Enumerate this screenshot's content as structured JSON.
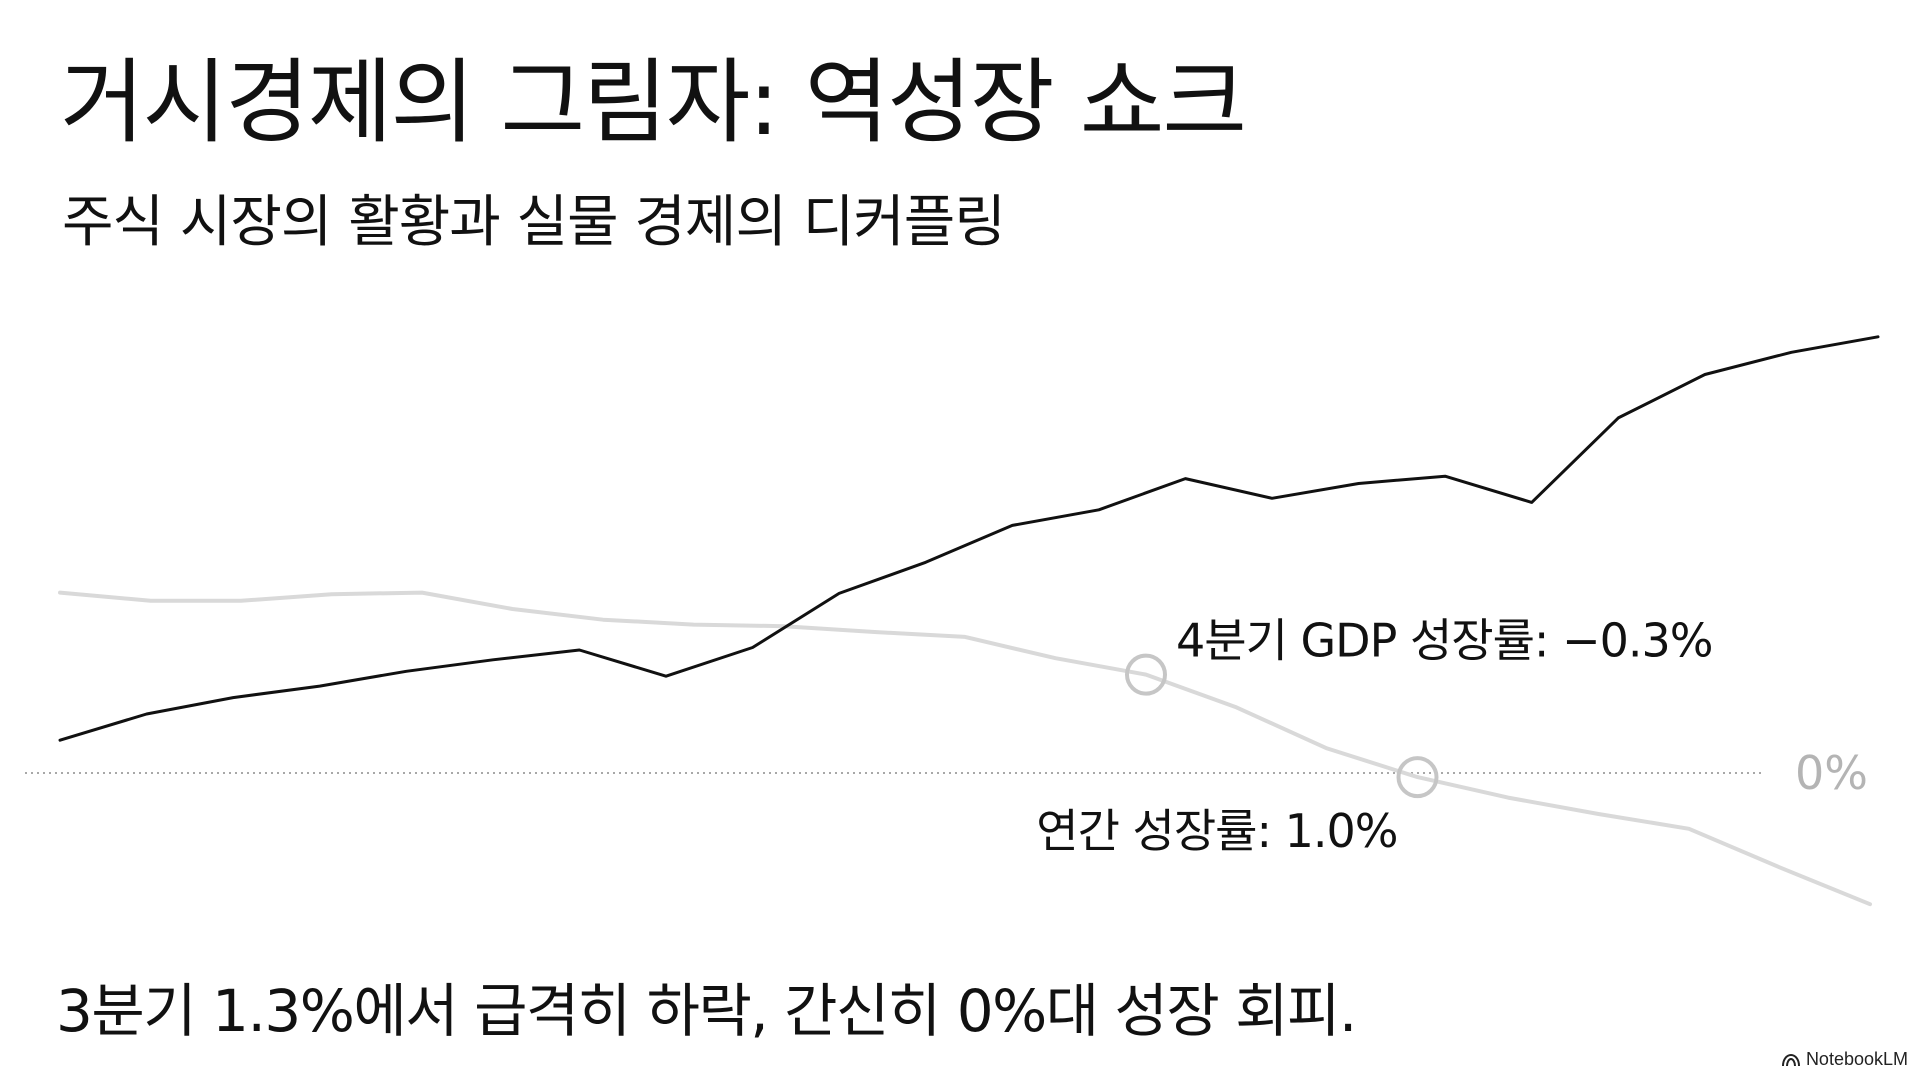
{
  "header": {
    "title": "거시경제의 그림자: 역성장 쇼크",
    "subtitle": "주식 시장의 활황과 실물 경제의 디커플링"
  },
  "footer": {
    "caption": "3분기 1.3%에서 급격히 하락, 간신히 0%대 성장 회피.",
    "brand": "NotebookLM"
  },
  "chart_data": {
    "type": "line",
    "grid": false,
    "legend": "none",
    "series": [
      {
        "color": "#111111",
        "y": [
          0.4,
          0.72,
          0.92,
          1.06,
          1.24,
          1.38,
          1.5,
          1.18,
          1.53,
          2.19,
          2.57,
          3.02,
          3.21,
          3.59,
          3.35,
          3.53,
          3.62,
          3.3,
          4.33,
          4.86,
          5.13,
          5.32
        ]
      },
      {
        "color": "#d9d9d9",
        "y": [
          2.2,
          2.1,
          2.1,
          2.18,
          2.2,
          2.0,
          1.87,
          1.81,
          1.79,
          1.72,
          1.66,
          1.4,
          1.2,
          0.8,
          0.3,
          -0.05,
          -0.3,
          -0.5,
          -0.68,
          -1.15,
          -1.6
        ]
      }
    ],
    "zero_line": {
      "label": "0%",
      "color": "#b4b4b4"
    },
    "annotations": [
      {
        "label": "4분기 GDP 성장률: −0.3%",
        "series": 1,
        "point_index": 12
      },
      {
        "label": "연간 성장률: 1.0%",
        "series": 1,
        "point_index": 15
      }
    ]
  }
}
